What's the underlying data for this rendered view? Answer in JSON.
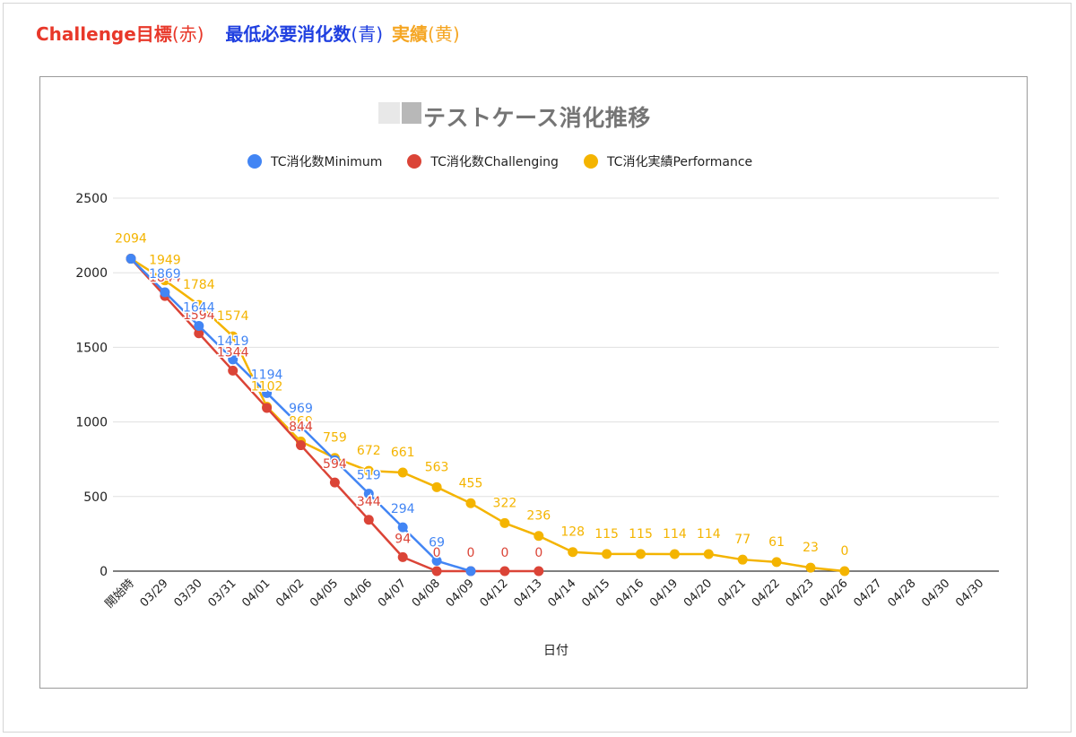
{
  "header": {
    "part1": "Challenge目標",
    "part1_paren": "(赤)",
    "part2": "最低必要消化数",
    "part2_paren": "(青)",
    "part3": "実績",
    "part3_paren": "(黄)"
  },
  "colors": {
    "red": "#db4437",
    "blue": "#4285f4",
    "yellow": "#f4b400",
    "header_red": "#e8382a",
    "header_blue": "#1f3fe0",
    "header_yellow": "#f5a623"
  },
  "chart_data": {
    "type": "line",
    "title": "テストケース消化推移",
    "xlabel": "日付",
    "ylabel": "",
    "ylim": [
      0,
      2500
    ],
    "yticks": [
      "0",
      "500",
      "1000",
      "1500",
      "2000",
      "2500"
    ],
    "grid": true,
    "legend_position": "top",
    "categories": [
      "開始時",
      "03/29",
      "03/30",
      "03/31",
      "04/01",
      "04/02",
      "04/05",
      "04/06",
      "04/07",
      "04/08",
      "04/09",
      "04/12",
      "04/13",
      "04/14",
      "04/15",
      "04/16",
      "04/19",
      "04/20",
      "04/21",
      "04/22",
      "04/23",
      "04/26",
      "04/27",
      "04/28",
      "04/30",
      "04/30"
    ],
    "series": [
      {
        "name": "TC消化数Minimum",
        "color": "#4285f4",
        "values": [
          2094,
          1869,
          1644,
          1419,
          1194,
          969,
          744,
          519,
          294,
          69,
          0,
          null,
          null,
          null,
          null,
          null,
          null,
          null,
          null,
          null,
          null,
          null,
          null,
          null,
          null,
          null
        ],
        "labels": [
          "",
          "1869",
          "1644",
          "1419",
          "1194",
          "969",
          "",
          "519",
          "294",
          "69",
          "",
          "",
          "",
          "",
          "",
          "",
          "",
          "",
          "",
          "",
          "",
          "",
          "",
          "",
          "",
          ""
        ]
      },
      {
        "name": "TC消化数Challenging",
        "color": "#db4437",
        "values": [
          2094,
          1844,
          1594,
          1344,
          1094,
          844,
          594,
          344,
          94,
          0,
          0,
          0,
          0,
          null,
          null,
          null,
          null,
          null,
          null,
          null,
          null,
          null,
          null,
          null,
          null,
          null
        ],
        "labels": [
          "",
          "1844",
          "1594",
          "1344",
          "",
          "844",
          "594",
          "344",
          "94",
          "0",
          "0",
          "0",
          "0",
          "",
          "",
          "",
          "",
          "",
          "",
          "",
          "",
          "",
          "",
          "",
          "",
          ""
        ]
      },
      {
        "name": "TC消化実績Performance",
        "color": "#f4b400",
        "values": [
          2094,
          1949,
          1784,
          1574,
          1102,
          869,
          759,
          672,
          661,
          563,
          455,
          322,
          236,
          128,
          115,
          115,
          114,
          114,
          77,
          61,
          23,
          0,
          null,
          null,
          null,
          null
        ],
        "labels": [
          "2094",
          "1949",
          "1784",
          "1574",
          "1102",
          "869",
          "759",
          "672",
          "661",
          "563",
          "455",
          "322",
          "236",
          "128",
          "115",
          "115",
          "114",
          "114",
          "77",
          "61",
          "23",
          "0",
          "",
          "",
          "",
          ""
        ]
      }
    ]
  }
}
